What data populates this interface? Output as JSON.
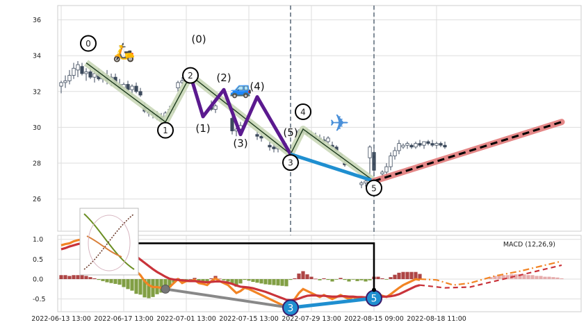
{
  "chart_data": [
    {
      "type": "candlestick",
      "ylim": [
        24.2,
        36.8
      ],
      "yticks": [
        26,
        28,
        30,
        32,
        34,
        36
      ],
      "grid": true,
      "candles": [
        {
          "i": 0,
          "o": 32.3,
          "h": 32.6,
          "l": 31.9,
          "c": 32.5
        },
        {
          "i": 1,
          "o": 32.5,
          "h": 32.9,
          "l": 32.2,
          "c": 32.6
        },
        {
          "i": 2,
          "o": 32.6,
          "h": 33.2,
          "l": 32.4,
          "c": 32.9
        },
        {
          "i": 3,
          "o": 32.9,
          "h": 33.6,
          "l": 32.7,
          "c": 33.3
        },
        {
          "i": 4,
          "o": 33.2,
          "h": 33.7,
          "l": 32.8,
          "c": 33.5
        },
        {
          "i": 5,
          "o": 33.4,
          "h": 33.6,
          "l": 32.9,
          "c": 33.0
        },
        {
          "i": 6,
          "o": 33.0,
          "h": 33.3,
          "l": 32.6,
          "c": 33.1
        },
        {
          "i": 7,
          "o": 33.1,
          "h": 33.4,
          "l": 32.7,
          "c": 32.8
        },
        {
          "i": 8,
          "o": 32.8,
          "h": 33.2,
          "l": 32.5,
          "c": 33.0
        },
        {
          "i": 9,
          "o": 33.0,
          "h": 33.3,
          "l": 32.6,
          "c": 32.7
        },
        {
          "i": 10,
          "o": 32.7,
          "h": 33.1,
          "l": 32.5,
          "c": 32.9
        },
        {
          "i": 11,
          "o": 32.9,
          "h": 33.2,
          "l": 32.4,
          "c": 32.6
        },
        {
          "i": 12,
          "o": 32.6,
          "h": 33.0,
          "l": 32.3,
          "c": 32.8
        },
        {
          "i": 13,
          "o": 32.8,
          "h": 33.0,
          "l": 32.3,
          "c": 32.4
        },
        {
          "i": 14,
          "o": 32.4,
          "h": 32.7,
          "l": 32.1,
          "c": 32.2
        },
        {
          "i": 15,
          "o": 32.2,
          "h": 32.5,
          "l": 31.9,
          "c": 32.4
        },
        {
          "i": 16,
          "o": 32.4,
          "h": 32.6,
          "l": 32.0,
          "c": 32.1
        },
        {
          "i": 17,
          "o": 32.1,
          "h": 32.4,
          "l": 31.8,
          "c": 32.3
        },
        {
          "i": 18,
          "o": 32.3,
          "h": 32.5,
          "l": 31.9,
          "c": 32.0
        },
        {
          "i": 19,
          "o": 32.0,
          "h": 32.2,
          "l": 31.7,
          "c": 31.8
        },
        {
          "i": 20,
          "o": 31.1,
          "h": 31.4,
          "l": 30.8,
          "c": 30.9
        },
        {
          "i": 21,
          "o": 30.9,
          "h": 31.1,
          "l": 30.6,
          "c": 30.8
        },
        {
          "i": 22,
          "o": 30.8,
          "h": 31.0,
          "l": 30.5,
          "c": 30.7
        },
        {
          "i": 23,
          "o": 30.7,
          "h": 30.9,
          "l": 30.4,
          "c": 30.6
        },
        {
          "i": 24,
          "o": 30.6,
          "h": 30.8,
          "l": 30.2,
          "c": 30.4
        },
        {
          "i": 25,
          "o": 30.4,
          "h": 30.9,
          "l": 30.3,
          "c": 30.8
        },
        {
          "i": 26,
          "o": 30.8,
          "h": 31.2,
          "l": 30.6,
          "c": 31.0
        },
        {
          "i": 27,
          "o": 31.0,
          "h": 31.4,
          "l": 30.8,
          "c": 31.3
        },
        {
          "i": 28,
          "o": 32.2,
          "h": 32.6,
          "l": 32.0,
          "c": 32.5
        },
        {
          "i": 29,
          "o": 32.5,
          "h": 32.8,
          "l": 32.3,
          "c": 32.6
        },
        {
          "i": 30,
          "o": 32.6,
          "h": 32.9,
          "l": 32.4,
          "c": 32.7
        },
        {
          "i": 31,
          "o": 32.7,
          "h": 32.9,
          "l": 32.5,
          "c": 32.8
        },
        {
          "i": 36,
          "o": 31.2,
          "h": 31.5,
          "l": 30.9,
          "c": 31.0
        },
        {
          "i": 37,
          "o": 31.0,
          "h": 31.3,
          "l": 30.8,
          "c": 31.2
        },
        {
          "i": 41,
          "o": 30.5,
          "h": 30.7,
          "l": 29.6,
          "c": 29.8
        },
        {
          "i": 42,
          "o": 29.8,
          "h": 30.0,
          "l": 29.5,
          "c": 29.9
        },
        {
          "i": 43,
          "o": 29.9,
          "h": 30.3,
          "l": 29.7,
          "c": 30.1
        },
        {
          "i": 47,
          "o": 29.6,
          "h": 29.8,
          "l": 29.3,
          "c": 29.5
        },
        {
          "i": 48,
          "o": 29.5,
          "h": 29.7,
          "l": 29.2,
          "c": 29.4
        },
        {
          "i": 50,
          "o": 29.0,
          "h": 29.2,
          "l": 28.7,
          "c": 28.9
        },
        {
          "i": 51,
          "o": 28.9,
          "h": 29.1,
          "l": 28.6,
          "c": 28.8
        },
        {
          "i": 52,
          "o": 28.8,
          "h": 29.0,
          "l": 28.6,
          "c": 28.9
        },
        {
          "i": 53,
          "o": 28.9,
          "h": 29.1,
          "l": 28.7,
          "c": 29.0
        },
        {
          "i": 54,
          "o": 28.9,
          "h": 29.1,
          "l": 28.6,
          "c": 28.7
        },
        {
          "i": 55,
          "o": 28.7,
          "h": 28.9,
          "l": 28.4,
          "c": 28.5
        },
        {
          "i": 57,
          "o": 29.7,
          "h": 29.9,
          "l": 29.4,
          "c": 29.8
        },
        {
          "i": 58,
          "o": 29.8,
          "h": 30.0,
          "l": 29.6,
          "c": 29.7
        },
        {
          "i": 59,
          "o": 29.7,
          "h": 29.9,
          "l": 29.5,
          "c": 29.6
        },
        {
          "i": 60,
          "o": 29.6,
          "h": 29.8,
          "l": 29.4,
          "c": 29.5
        },
        {
          "i": 61,
          "o": 29.5,
          "h": 29.7,
          "l": 29.3,
          "c": 29.4
        },
        {
          "i": 62,
          "o": 29.4,
          "h": 29.6,
          "l": 29.2,
          "c": 29.3
        },
        {
          "i": 63,
          "o": 29.3,
          "h": 29.5,
          "l": 29.1,
          "c": 29.2
        },
        {
          "i": 64,
          "o": 29.2,
          "h": 29.5,
          "l": 29.0,
          "c": 29.4
        },
        {
          "i": 65,
          "o": 29.0,
          "h": 29.2,
          "l": 28.8,
          "c": 28.9
        },
        {
          "i": 66,
          "o": 28.9,
          "h": 29.0,
          "l": 28.6,
          "c": 28.7
        },
        {
          "i": 67,
          "o": 28.4,
          "h": 28.6,
          "l": 28.2,
          "c": 28.5
        },
        {
          "i": 68,
          "o": 28.0,
          "h": 28.2,
          "l": 27.8,
          "c": 27.9
        },
        {
          "i": 72,
          "o": 26.8,
          "h": 27.0,
          "l": 26.6,
          "c": 26.9
        },
        {
          "i": 73,
          "o": 26.9,
          "h": 27.1,
          "l": 26.7,
          "c": 27.0
        },
        {
          "i": 74,
          "o": 28.3,
          "h": 29.0,
          "l": 27.2,
          "c": 28.9
        },
        {
          "i": 75,
          "o": 28.6,
          "h": 28.9,
          "l": 27.4,
          "c": 27.6
        },
        {
          "i": 77,
          "o": 27.4,
          "h": 27.6,
          "l": 27.2,
          "c": 27.5
        },
        {
          "i": 78,
          "o": 27.5,
          "h": 28.0,
          "l": 27.3,
          "c": 27.8
        },
        {
          "i": 79,
          "o": 27.8,
          "h": 28.6,
          "l": 27.6,
          "c": 28.4
        },
        {
          "i": 80,
          "o": 28.4,
          "h": 28.9,
          "l": 28.2,
          "c": 28.7
        },
        {
          "i": 81,
          "o": 28.7,
          "h": 29.3,
          "l": 28.5,
          "c": 29.1
        },
        {
          "i": 82,
          "o": 28.9,
          "h": 29.1,
          "l": 28.8,
          "c": 29.0
        },
        {
          "i": 83,
          "o": 29.0,
          "h": 29.2,
          "l": 28.8,
          "c": 29.1
        },
        {
          "i": 84,
          "o": 29.0,
          "h": 29.1,
          "l": 28.8,
          "c": 28.9
        },
        {
          "i": 85,
          "o": 28.9,
          "h": 29.2,
          "l": 28.8,
          "c": 29.1
        },
        {
          "i": 86,
          "o": 29.1,
          "h": 29.3,
          "l": 28.9,
          "c": 29.0
        },
        {
          "i": 87,
          "o": 29.0,
          "h": 29.2,
          "l": 28.8,
          "c": 29.2
        },
        {
          "i": 88,
          "o": 29.2,
          "h": 29.3,
          "l": 29.0,
          "c": 29.1
        },
        {
          "i": 89,
          "o": 29.1,
          "h": 29.3,
          "l": 28.9,
          "c": 29.0
        },
        {
          "i": 90,
          "o": 29.0,
          "h": 29.2,
          "l": 28.8,
          "c": 29.1
        },
        {
          "i": 91,
          "o": 29.1,
          "h": 29.2,
          "l": 28.9,
          "c": 29.0
        },
        {
          "i": 92,
          "o": 29.0,
          "h": 29.2,
          "l": 28.8,
          "c": 28.9
        }
      ],
      "wave_primary": [
        {
          "label": "0",
          "i": 6,
          "y": 33.6
        },
        {
          "label": "1",
          "i": 25,
          "y": 30.3
        },
        {
          "label": "2",
          "i": 31,
          "y": 32.9
        },
        {
          "label": "3",
          "i": 55,
          "y": 28.5
        },
        {
          "label": "4",
          "i": 58,
          "y": 29.9
        },
        {
          "label": "5",
          "i": 75,
          "y": 27.0
        }
      ],
      "wave_secondary": [
        {
          "label": "(1)",
          "i": 34,
          "y": 30.6
        },
        {
          "label": "(2)",
          "i": 39,
          "y": 32.1
        },
        {
          "label": "(3)",
          "i": 43,
          "y": 29.6
        },
        {
          "label": "(4)",
          "i": 47,
          "y": 31.7
        },
        {
          "label": "(5)",
          "i": 55,
          "y": 28.5
        }
      ],
      "projection_line": [
        {
          "i": 75,
          "y": 27.0
        },
        {
          "i": 120,
          "y": 30.3
        }
      ],
      "blue_line": [
        {
          "i": 55,
          "y": 28.5
        },
        {
          "i": 75,
          "y": 27.0
        }
      ],
      "text_labels": [
        {
          "label": "(0)",
          "i": 33,
          "y": 34.8
        }
      ],
      "vertical_markers": [
        55,
        75
      ],
      "x_tick_labels": [
        "2022-06-13 13:00",
        "2022-06-17 13:00",
        "2022-07-01 13:00",
        "2022-07-15 13:00",
        "2022-07-29 13:00",
        "2022-08-15 09:00",
        "2022-08-18 11:00"
      ],
      "x_tick_index": [
        0,
        15,
        30,
        45,
        60,
        75,
        90
      ]
    },
    {
      "type": "macd",
      "legend": "MACD (12,26,9)",
      "ylim": [
        -0.82,
        1.1
      ],
      "yticks": [
        1.0,
        0.5,
        0.0,
        -0.5
      ],
      "macd": [
        0.85,
        0.88,
        0.9,
        0.95,
        0.98,
        1.0,
        1.0,
        0.98,
        0.95,
        0.9,
        0.85,
        0.8,
        0.75,
        0.7,
        0.65,
        0.55,
        0.45,
        0.35,
        0.2,
        0.1,
        -0.05,
        -0.15,
        -0.2,
        -0.2,
        -0.22,
        -0.25,
        -0.2,
        -0.1,
        0.0,
        -0.1,
        -0.05,
        -0.05,
        -0.02,
        -0.1,
        -0.12,
        -0.15,
        -0.05,
        0.02,
        -0.05,
        -0.1,
        -0.15,
        -0.25,
        -0.35,
        -0.3,
        -0.22,
        -0.25,
        -0.3,
        -0.35,
        -0.4,
        -0.45,
        -0.5,
        -0.55,
        -0.6,
        -0.65,
        -0.7,
        -0.55,
        -0.5,
        -0.35,
        -0.25,
        -0.3,
        -0.35,
        -0.4,
        -0.45,
        -0.4,
        -0.45,
        -0.5,
        -0.45,
        -0.4,
        -0.45,
        -0.5,
        -0.45,
        -0.5,
        -0.48,
        -0.52,
        -0.5,
        -0.4,
        -0.38,
        -0.42,
        -0.45,
        -0.38,
        -0.3,
        -0.22,
        -0.15,
        -0.1,
        -0.05,
        0.0,
        -0.02
      ],
      "signal": [
        0.75,
        0.78,
        0.82,
        0.85,
        0.88,
        0.9,
        0.92,
        0.93,
        0.93,
        0.92,
        0.9,
        0.88,
        0.85,
        0.82,
        0.79,
        0.75,
        0.7,
        0.64,
        0.57,
        0.49,
        0.41,
        0.33,
        0.25,
        0.18,
        0.12,
        0.06,
        0.01,
        -0.01,
        -0.02,
        -0.03,
        -0.04,
        -0.05,
        -0.05,
        -0.06,
        -0.07,
        -0.08,
        -0.07,
        -0.06,
        -0.06,
        -0.07,
        -0.09,
        -0.12,
        -0.16,
        -0.19,
        -0.2,
        -0.21,
        -0.23,
        -0.26,
        -0.29,
        -0.32,
        -0.36,
        -0.4,
        -0.44,
        -0.48,
        -0.52,
        -0.53,
        -0.52,
        -0.49,
        -0.45,
        -0.42,
        -0.41,
        -0.41,
        -0.42,
        -0.42,
        -0.43,
        -0.44,
        -0.44,
        -0.43,
        -0.43,
        -0.44,
        -0.44,
        -0.45,
        -0.45,
        -0.46,
        -0.47,
        -0.46,
        -0.44,
        -0.44,
        -0.44,
        -0.43,
        -0.41,
        -0.38,
        -0.33,
        -0.28,
        -0.23,
        -0.18,
        -0.15
      ],
      "projected_macd": [
        {
          "i": 86,
          "y": 0.0
        },
        {
          "i": 90,
          "y": -0.02
        },
        {
          "i": 94,
          "y": -0.15
        },
        {
          "i": 98,
          "y": -0.1
        },
        {
          "i": 104,
          "y": 0.08
        },
        {
          "i": 110,
          "y": 0.2
        },
        {
          "i": 116,
          "y": 0.35
        },
        {
          "i": 120,
          "y": 0.45
        }
      ],
      "projected_signal": [
        {
          "i": 86,
          "y": -0.15
        },
        {
          "i": 92,
          "y": -0.22
        },
        {
          "i": 98,
          "y": -0.2
        },
        {
          "i": 104,
          "y": -0.05
        },
        {
          "i": 110,
          "y": 0.1
        },
        {
          "i": 116,
          "y": 0.25
        },
        {
          "i": 120,
          "y": 0.35
        }
      ],
      "projected_hist": [
        0.05,
        0.08,
        0.1,
        0.1,
        0.1,
        0.12,
        0.12,
        0.12,
        0.12,
        0.1,
        0.1,
        0.08,
        0.08,
        0.06,
        0.06,
        0.05,
        0.04,
        0.02
      ],
      "points": [
        {
          "label": "",
          "i": 25,
          "y": -0.25
        },
        {
          "label": "3",
          "i": 55,
          "y": -0.72
        },
        {
          "label": "5",
          "i": 75,
          "y": -0.48
        }
      ],
      "connector_y": 0.9
    }
  ],
  "emoji": {
    "scooter": "🛵",
    "car": "🚙",
    "plane": "✈"
  },
  "colors": {
    "green_wave": "#c9d7b7",
    "purple_wave": "#5b1a8f",
    "blue": "#1f8fd0",
    "projection": "#e27b7b",
    "macd": "#f28424",
    "signal": "#c9333a",
    "hist_pos": "#a02424",
    "hist_neg": "#6b8e23",
    "marker_line": "#4b5b6b"
  }
}
